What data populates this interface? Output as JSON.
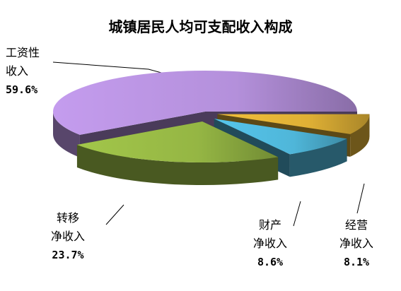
{
  "chart_data": {
    "type": "pie",
    "title": "城镇居民人均可支配收入构成",
    "categories": [
      "工资性\n收入",
      "转移\n净收入",
      "财产\n净收入",
      "经营\n净收入"
    ],
    "values": [
      59.6,
      23.7,
      8.6,
      8.1
    ],
    "value_labels": [
      "59.6%",
      "23.7%",
      "8.6%",
      "8.1%"
    ],
    "colors": [
      "#c49cee",
      "#a2c64a",
      "#56c6ec",
      "#f2bf3a"
    ],
    "explode": true,
    "three_d": true
  }
}
